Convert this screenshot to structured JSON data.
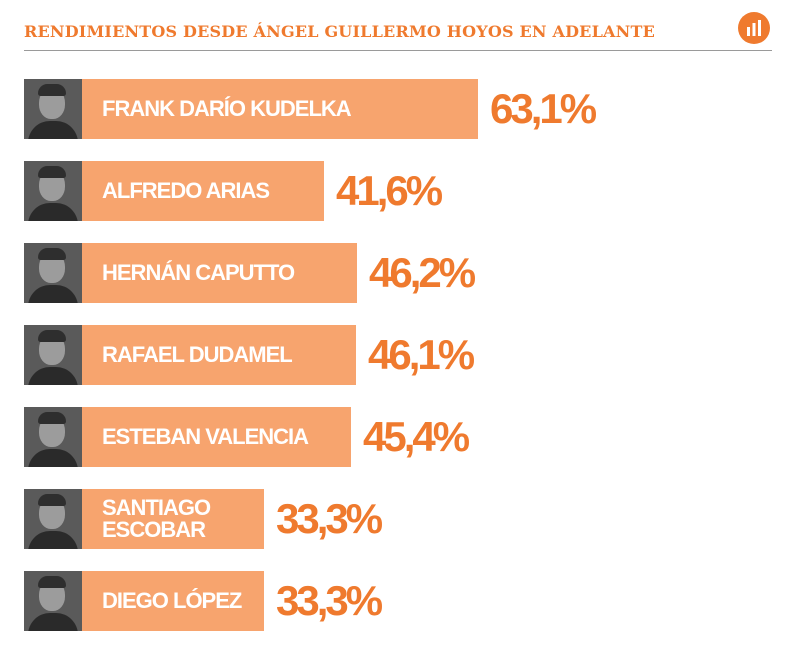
{
  "title": "RENDIMIENTOS DESDE ÁNGEL GUILLERMO HOYOS EN ADELANTE",
  "header_icon": "bar-chart-icon",
  "colors": {
    "accent": "#ef7a2e",
    "bar": "#f7a46e",
    "label": "#ffffff"
  },
  "chart_data": {
    "type": "bar",
    "orientation": "horizontal",
    "title": "RENDIMIENTOS DESDE ÁNGEL GUILLERMO HOYOS EN ADELANTE",
    "categories": [
      "FRANK DARÍO KUDELKA",
      "ALFREDO ARIAS",
      "HERNÁN CAPUTTO",
      "RAFAEL DUDAMEL",
      "ESTEBAN VALENCIA",
      "SANTIAGO\nESCOBAR",
      "DIEGO LÓPEZ"
    ],
    "values": [
      63.1,
      41.6,
      46.2,
      46.1,
      45.4,
      33.3,
      33.3
    ],
    "value_labels": [
      "63,1%",
      "41,6%",
      "46,2%",
      "46,1%",
      "45,4%",
      "33,3%",
      "33,3%"
    ],
    "unit": "%",
    "xlim": [
      0,
      100
    ],
    "grid": false,
    "legend": "none"
  }
}
